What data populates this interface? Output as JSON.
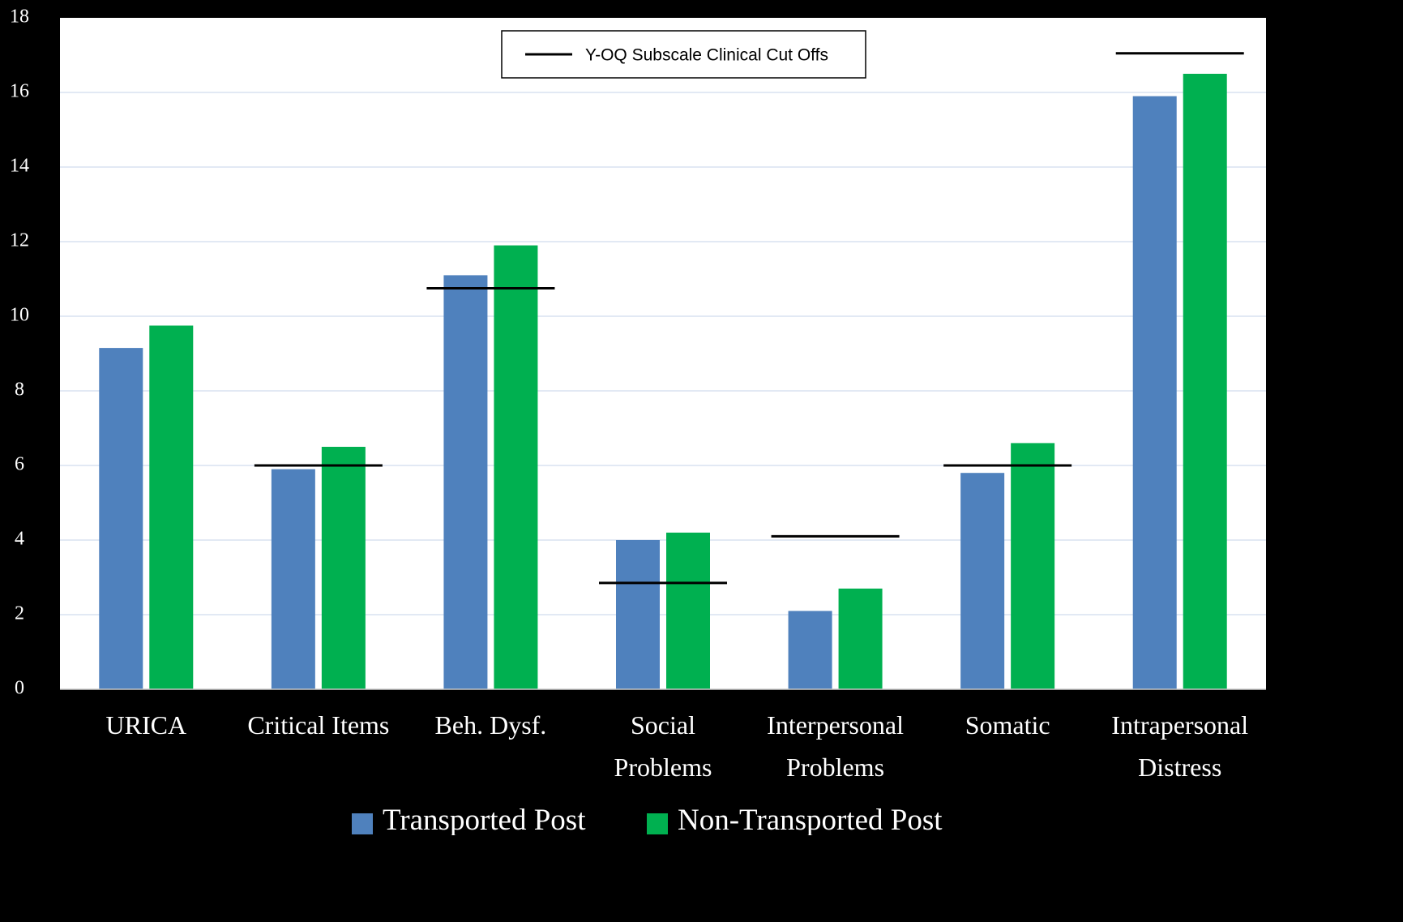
{
  "chart_data": {
    "type": "bar",
    "title": "",
    "xlabel": "",
    "ylabel": "",
    "ylim": [
      0,
      18
    ],
    "yticks": [
      0,
      2,
      4,
      6,
      8,
      10,
      12,
      14,
      16,
      18
    ],
    "grid": true,
    "categories": [
      [
        "URICA"
      ],
      [
        "Critical Items"
      ],
      [
        "Beh. Dysf."
      ],
      [
        "Social",
        "Problems"
      ],
      [
        "Interpersonal",
        "Problems"
      ],
      [
        "Somatic"
      ],
      [
        "Intrapersonal",
        "Distress"
      ]
    ],
    "series": [
      {
        "name": "Transported Post",
        "color": "#4f81bd",
        "values": [
          9.15,
          5.9,
          11.1,
          4.0,
          2.1,
          5.8,
          15.9
        ]
      },
      {
        "name": "Non-Transported Post",
        "color": "#00b050",
        "values": [
          9.75,
          6.5,
          11.9,
          4.2,
          2.7,
          6.6,
          16.5
        ]
      }
    ],
    "reference_lines": {
      "name": "Y-OQ Subscale Clinical Cut Offs",
      "values": [
        null,
        6.0,
        10.75,
        2.85,
        4.1,
        6.0,
        17.05
      ]
    },
    "legend_position": "bottom",
    "reference_legend_position": "top-center"
  }
}
